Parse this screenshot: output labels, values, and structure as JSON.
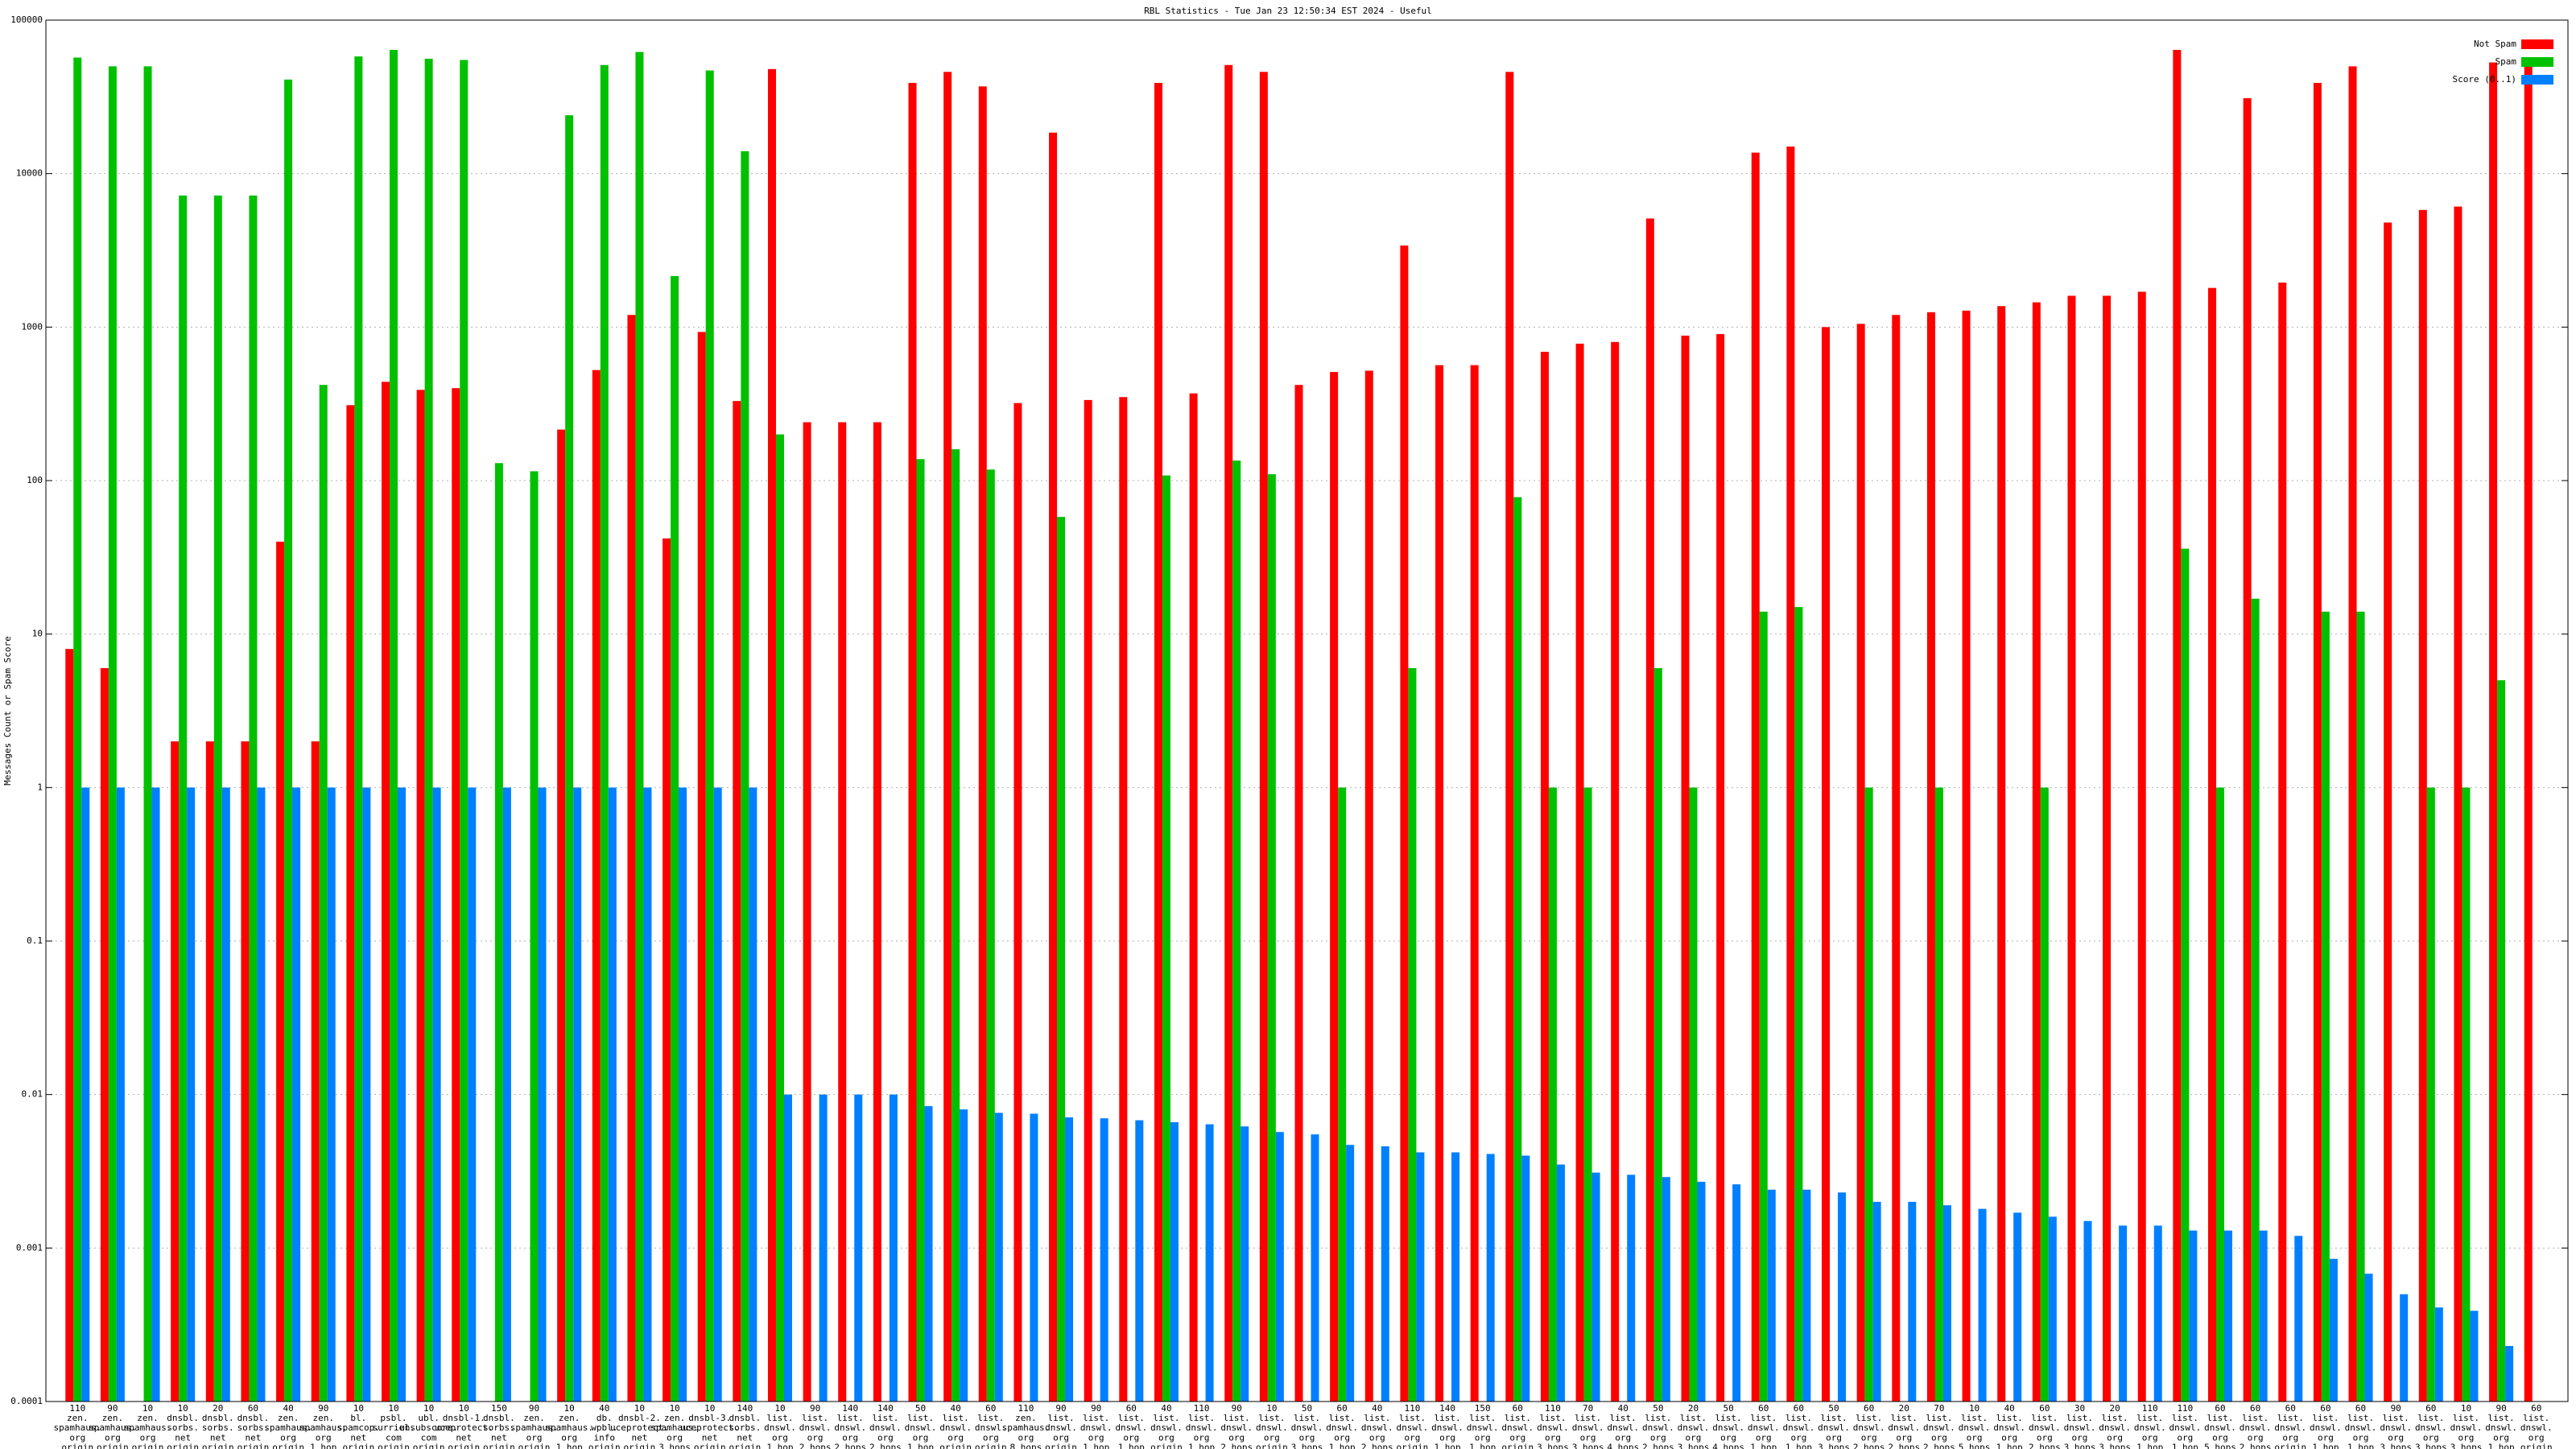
{
  "chart_data": {
    "type": "bar",
    "title": "RBL Statistics - Tue Jan 23 12:50:34 EST 2024 - Useful",
    "ylabel": "Messages Count or Spam Score",
    "log_y": true,
    "grid": true,
    "legend": "top-right",
    "ylim": [
      0.0001,
      100000
    ],
    "yticks": [
      0.0001,
      0.001,
      0.01,
      0.1,
      1,
      10,
      100,
      1000,
      10000,
      100000
    ],
    "categories": [
      "110\nzen.\nspamhaus.\norg\norigin",
      "90\nzen.\nspamhaus.\norg\norigin",
      "10\nzen.\nspamhaus.\norg\norigin",
      "10\ndnsbl.\nsorbs.\nnet\norigin",
      "20\ndnsbl.\nsorbs.\nnet\norigin",
      "60\ndnsbl.\nsorbs.\nnet\norigin",
      "40\nzen.\nspamhaus.\norg\norigin",
      "90\nzen.\nspamhaus.\norg\n1 hop",
      "10\nbl.\nspamcop.\nnet\norigin",
      "10\npsbl.\nsurriel.\ncom\norigin",
      "10\nubl.\nunsubscore.\ncom\norigin",
      "10\ndnsbl-1.\nuceprotect.\nnet\norigin",
      "150\ndnsbl.\nsorbs.\nnet\norigin",
      "90\nzen.\nspamhaus.\norg\norigin",
      "10\nzen.\nspamhaus.\norg\n1 hop",
      "40\ndb.\nwpbl.\ninfo\norigin",
      "10\ndnsbl-2.\nuceprotect.\nnet\norigin",
      "10\nzen.\nspamhaus.\norg\n3 hops",
      "10\ndnsbl-3.\nuceprotect.\nnet\norigin",
      "140\ndnsbl.\nsorbs.\nnet\norigin",
      "10\nlist.\ndnswl.\norg\n1 hop",
      "90\nlist.\ndnswl.\norg\n2 hops",
      "140\nlist.\ndnswl.\norg\n2 hops",
      "140\nlist.\ndnswl.\norg\n2 hops",
      "50\nlist.\ndnswl.\norg\n1 hop",
      "40\nlist.\ndnswl.\norg\norigin",
      "60\nlist.\ndnswl.\norg\norigin",
      "110\nzen.\nspamhaus.\norg\n8 hops",
      "90\nlist.\ndnswl.\norg\norigin",
      "90\nlist.\ndnswl.\norg\n1 hop",
      "60\nlist.\ndnswl.\norg\n1 hop",
      "40\nlist.\ndnswl.\norg\norigin",
      "110\nlist.\ndnswl.\norg\n1 hop",
      "90\nlist.\ndnswl.\norg\n2 hops",
      "10\nlist.\ndnswl.\norg\norigin",
      "50\nlist.\ndnswl.\norg\n3 hops",
      "60\nlist.\ndnswl.\norg\n1 hop",
      "40\nlist.\ndnswl.\norg\n2 hops",
      "110\nlist.\ndnswl.\norg\norigin",
      "140\nlist.\ndnswl.\norg\n1 hop",
      "150\nlist.\ndnswl.\norg\n1 hop",
      "60\nlist.\ndnswl.\norg\norigin",
      "110\nlist.\ndnswl.\norg\n3 hops",
      "70\nlist.\ndnswl.\norg\n3 hops",
      "40\nlist.\ndnswl.\norg\n4 hops",
      "50\nlist.\ndnswl.\norg\n2 hops",
      "20\nlist.\ndnswl.\norg\n3 hops",
      "50\nlist.\ndnswl.\norg\n4 hops",
      "60\nlist.\ndnswl.\norg\n1 hop",
      "60\nlist.\ndnswl.\norg\n1 hop",
      "50\nlist.\ndnswl.\norg\n3 hops",
      "60\nlist.\ndnswl.\norg\n2 hops",
      "20\nlist.\ndnswl.\norg\n2 hops",
      "70\nlist.\ndnswl.\norg\n2 hops",
      "10\nlist.\ndnswl.\norg\n5 hops",
      "40\nlist.\ndnswl.\norg\n1 hop",
      "60\nlist.\ndnswl.\norg\n2 hops",
      "30\nlist.\ndnswl.\norg\n3 hops",
      "20\nlist.\ndnswl.\norg\n3 hops",
      "110\nlist.\ndnswl.\norg\n1 hop",
      "110\nlist.\ndnswl.\norg\n1 hop",
      "60\nlist.\ndnswl.\norg\n5 hops",
      "60\nlist.\ndnswl.\norg\n2 hops",
      "60\nlist.\ndnswl.\norg\norigin",
      "60\nlist.\ndnswl.\norg\n1 hop",
      "60\nlist.\ndnswl.\norg\n1 hop",
      "90\nlist.\ndnswl.\norg\n3 hops",
      "60\nlist.\ndnswl.\norg\n3 hops",
      "10\nlist.\ndnswl.\norg\n3 hops",
      "90\nlist.\ndnswl.\norg\n1 hop",
      "60\nlist.\ndnswl.\norg\norigin"
    ],
    "series": [
      {
        "name": "Not Spam",
        "color": "#ff0000",
        "values": [
          8,
          6,
          null,
          2,
          2,
          2,
          40,
          2,
          310,
          440,
          390,
          400,
          null,
          null,
          215,
          525,
          1200,
          42,
          930,
          330,
          48000,
          240,
          240,
          240,
          39000,
          46000,
          37000,
          320,
          18500,
          335,
          350,
          39000,
          370,
          51000,
          46000,
          420,
          510,
          520,
          3400,
          565,
          565,
          46000,
          690,
          780,
          800,
          5100,
          880,
          900,
          13700,
          15000,
          1000,
          1050,
          1200,
          1250,
          1280,
          1370,
          1450,
          1600,
          1600,
          1700,
          64000,
          1800,
          31000,
          1950,
          39000,
          50000,
          4800,
          5800,
          6100,
          53000,
          53000
        ]
      },
      {
        "name": "Spam",
        "color": "#00c000",
        "values": [
          57000,
          50000,
          50000,
          7200,
          7200,
          7200,
          41000,
          420,
          58000,
          64000,
          56000,
          55000,
          130,
          115,
          24000,
          51000,
          62000,
          2150,
          47000,
          14000,
          200,
          null,
          null,
          null,
          138,
          160,
          118,
          null,
          58,
          null,
          null,
          108,
          null,
          135,
          110,
          null,
          1,
          null,
          6,
          null,
          null,
          78,
          1,
          1,
          null,
          6,
          1,
          null,
          14,
          15,
          null,
          1,
          null,
          1,
          null,
          null,
          1,
          null,
          null,
          null,
          36,
          1,
          17,
          null,
          14,
          14,
          null,
          1,
          1,
          5,
          null
        ]
      },
      {
        "name": "Score (0..1)",
        "color": "#0080ff",
        "values": [
          1,
          1,
          1,
          1,
          1,
          1,
          1,
          1,
          1,
          1,
          1,
          1,
          1,
          1,
          1,
          1,
          1,
          1,
          1,
          1,
          0.01,
          0.01,
          0.01,
          0.01,
          0.0084,
          0.008,
          0.0076,
          0.0075,
          0.0071,
          0.007,
          0.0068,
          0.0066,
          0.0064,
          0.0062,
          0.0057,
          0.0055,
          0.0047,
          0.0046,
          0.0042,
          0.0042,
          0.0041,
          0.004,
          0.0035,
          0.0031,
          0.003,
          0.0029,
          0.0027,
          0.0026,
          0.0024,
          0.0024,
          0.0023,
          0.002,
          0.002,
          0.0019,
          0.0018,
          0.0017,
          0.0016,
          0.0015,
          0.0014,
          0.0014,
          0.0013,
          0.0013,
          0.0013,
          0.0012,
          0.00085,
          0.00068,
          0.0005,
          0.00041,
          0.00039,
          0.00023,
          null
        ]
      }
    ]
  }
}
